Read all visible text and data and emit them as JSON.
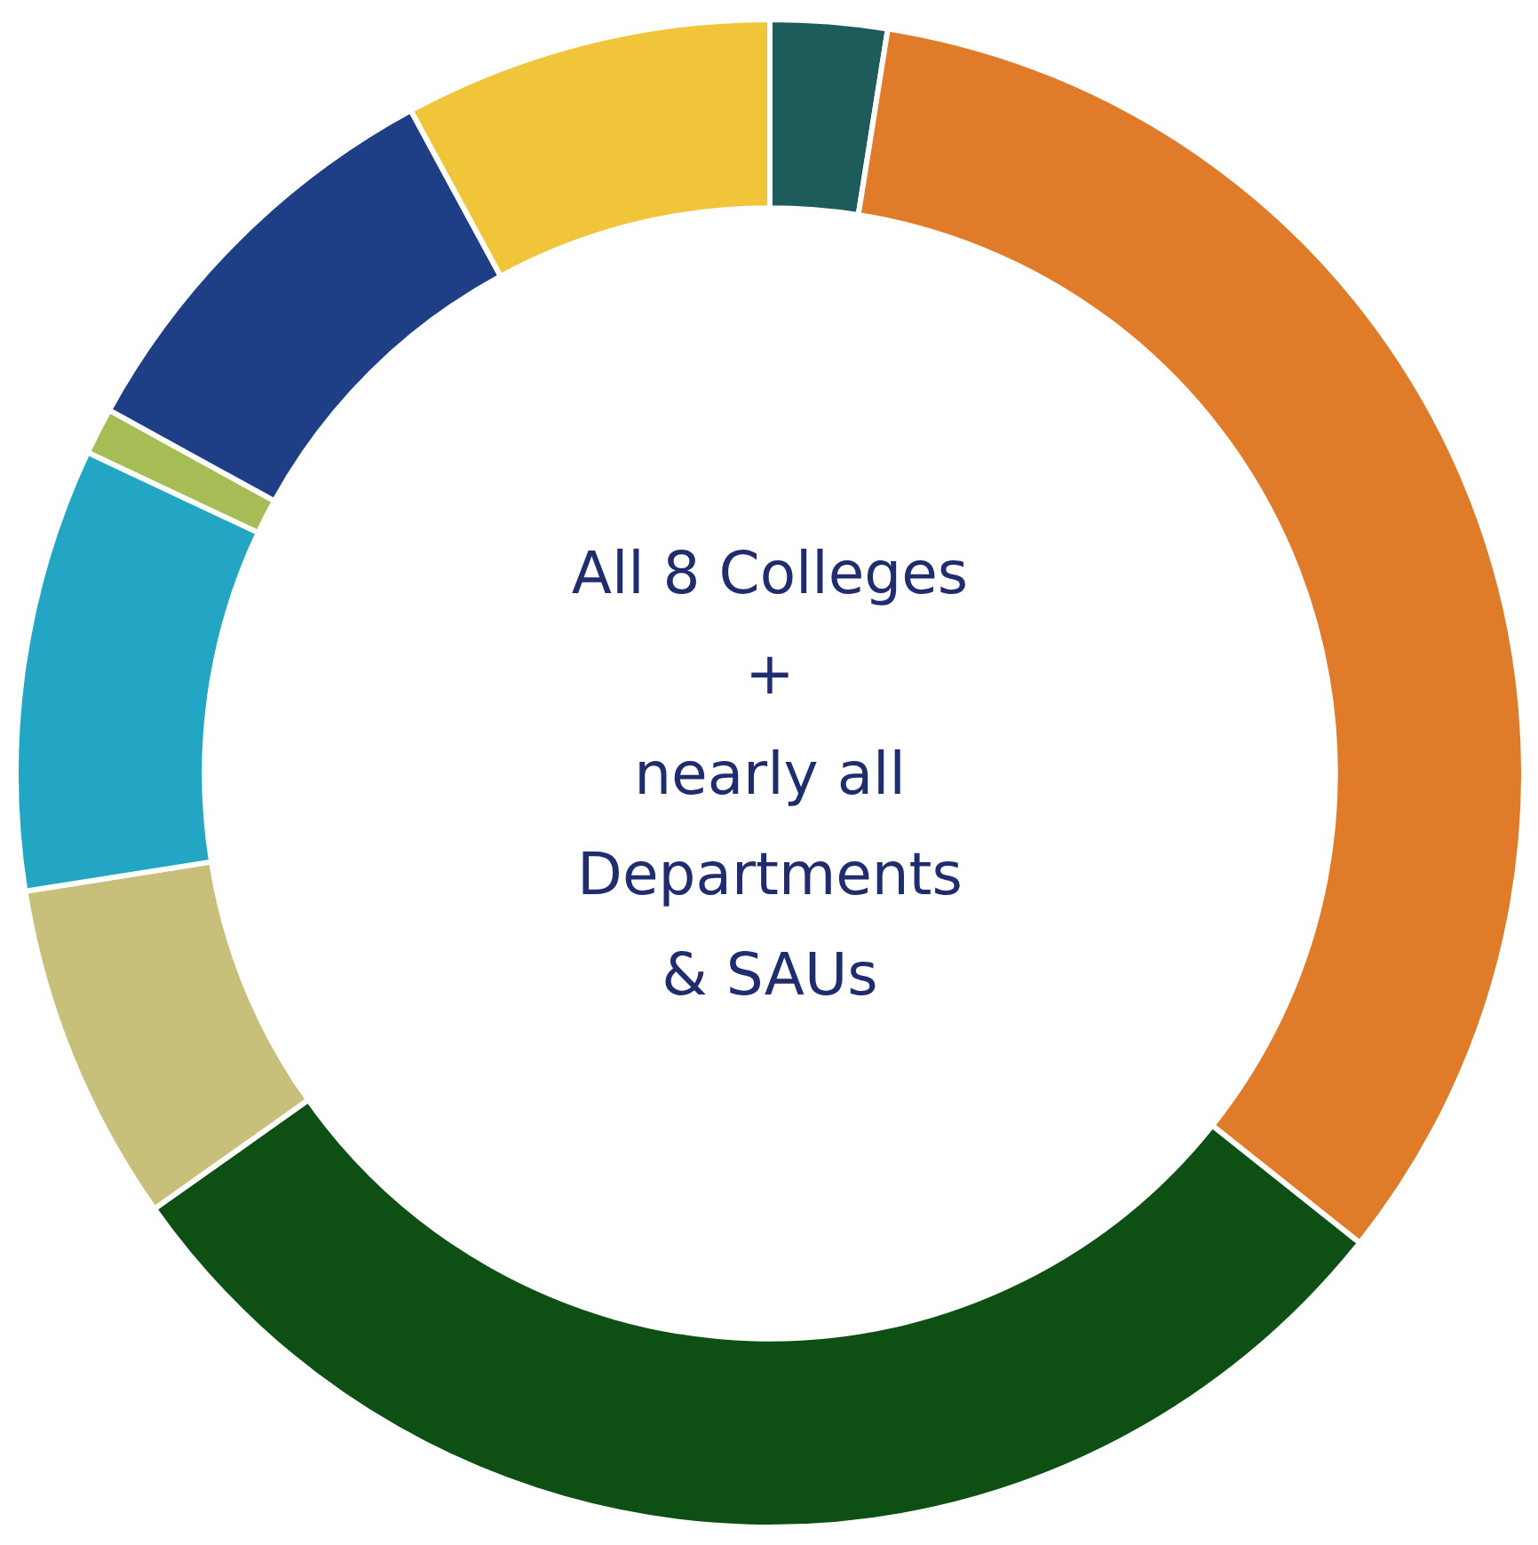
{
  "chart_data": {
    "type": "donut",
    "categories": [
      null,
      null,
      null,
      null,
      null,
      null,
      null,
      null
    ],
    "values": [
      2.5,
      33.2,
      29.5,
      7.3,
      9.5,
      1.0,
      9.1,
      7.9
    ],
    "colors": [
      "#1d5c5a",
      "#e07b2a",
      "#0e5014",
      "#c8c07a",
      "#23a6c4",
      "#a6bd55",
      "#1e3f86",
      "#f0c53a"
    ],
    "annotations": [
      "All 8 Colleges\n+\nnearly all\nDepartments\n& SAUs"
    ]
  }
}
